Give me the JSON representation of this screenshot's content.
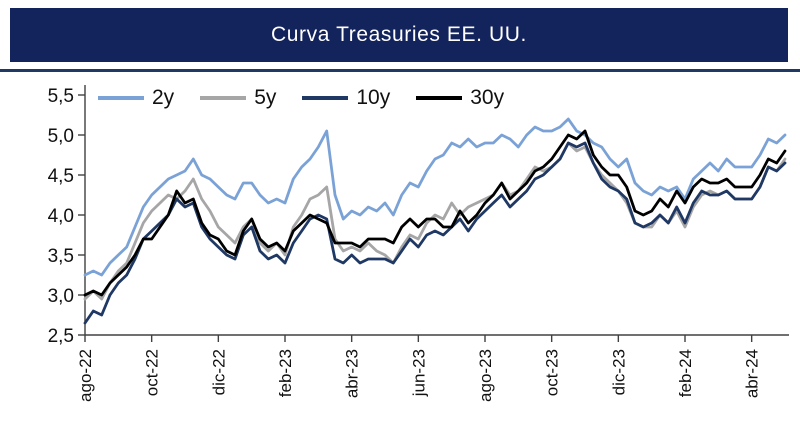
{
  "header": {
    "title": "Curva Treasuries EE. UU."
  },
  "colors": {
    "header_bg": "#13235B",
    "underline": "#1F3864",
    "axis": "#404040",
    "tick_text": "#111111"
  },
  "chart_data": {
    "type": "line",
    "title": "Curva Treasuries EE. UU.",
    "xlabel": "",
    "ylabel": "",
    "grid": false,
    "legend_position": "top-left-inside",
    "ylim": [
      2.5,
      5.5
    ],
    "xlim_months": [
      0,
      21
    ],
    "x_step_months": 0.25,
    "x_tick_months": [
      0,
      2,
      4,
      6,
      8,
      10,
      12,
      14,
      16,
      18,
      20
    ],
    "x_tick_labels": [
      "ago-22",
      "oct-22",
      "dic-22",
      "feb-23",
      "abr-23",
      "jun-23",
      "ago-23",
      "oct-23",
      "dic-23",
      "feb-24",
      "abr-24"
    ],
    "y_tick_values": [
      2.5,
      3.0,
      3.5,
      4.0,
      4.5,
      5.0,
      5.5
    ],
    "y_tick_labels": [
      "2,5",
      "3,0",
      "3,5",
      "4,0",
      "4,5",
      "5,0",
      "5,5"
    ],
    "series": [
      {
        "name": "2y",
        "color": "#7BA2D6",
        "values": [
          3.25,
          3.3,
          3.25,
          3.4,
          3.5,
          3.6,
          3.85,
          4.1,
          4.25,
          4.35,
          4.45,
          4.5,
          4.55,
          4.7,
          4.5,
          4.45,
          4.35,
          4.25,
          4.2,
          4.4,
          4.4,
          4.25,
          4.15,
          4.2,
          4.15,
          4.45,
          4.6,
          4.7,
          4.85,
          5.05,
          4.25,
          3.95,
          4.05,
          4.0,
          4.1,
          4.05,
          4.15,
          4.0,
          4.25,
          4.4,
          4.35,
          4.55,
          4.7,
          4.75,
          4.9,
          4.85,
          4.95,
          4.85,
          4.9,
          4.9,
          5.0,
          4.95,
          4.85,
          5.0,
          5.1,
          5.05,
          5.05,
          5.1,
          5.2,
          5.05,
          5.0,
          4.9,
          4.85,
          4.7,
          4.6,
          4.7,
          4.4,
          4.3,
          4.25,
          4.35,
          4.3,
          4.35,
          4.2,
          4.45,
          4.55,
          4.65,
          4.55,
          4.7,
          4.6,
          4.6,
          4.6,
          4.75,
          4.95,
          4.9,
          5.0
        ]
      },
      {
        "name": "5y",
        "color": "#A6A6A6",
        "values": [
          2.95,
          3.05,
          2.95,
          3.15,
          3.3,
          3.4,
          3.65,
          3.9,
          4.05,
          4.15,
          4.25,
          4.2,
          4.3,
          4.45,
          4.2,
          4.05,
          3.85,
          3.75,
          3.65,
          3.85,
          3.95,
          3.65,
          3.55,
          3.65,
          3.5,
          3.85,
          4.0,
          4.2,
          4.25,
          4.35,
          3.7,
          3.55,
          3.6,
          3.55,
          3.65,
          3.55,
          3.5,
          3.4,
          3.6,
          3.75,
          3.7,
          3.9,
          4.0,
          3.95,
          4.15,
          4.0,
          4.1,
          4.15,
          4.2,
          4.25,
          4.4,
          4.25,
          4.3,
          4.45,
          4.6,
          4.55,
          4.6,
          4.7,
          4.9,
          4.8,
          4.85,
          4.65,
          4.5,
          4.4,
          4.3,
          4.15,
          3.9,
          3.85,
          3.85,
          4.0,
          3.9,
          4.05,
          3.85,
          4.1,
          4.25,
          4.3,
          4.25,
          4.3,
          4.2,
          4.2,
          4.2,
          4.35,
          4.6,
          4.55,
          4.7
        ]
      },
      {
        "name": "10y",
        "color": "#1F3864",
        "values": [
          2.65,
          2.8,
          2.75,
          3.0,
          3.15,
          3.25,
          3.45,
          3.7,
          3.8,
          3.9,
          4.0,
          4.2,
          4.1,
          4.15,
          3.85,
          3.7,
          3.6,
          3.5,
          3.45,
          3.75,
          3.85,
          3.55,
          3.45,
          3.5,
          3.4,
          3.65,
          3.8,
          3.95,
          4.0,
          3.95,
          3.45,
          3.4,
          3.5,
          3.4,
          3.45,
          3.45,
          3.45,
          3.4,
          3.55,
          3.7,
          3.6,
          3.75,
          3.8,
          3.75,
          3.85,
          3.95,
          3.8,
          3.95,
          4.05,
          4.15,
          4.25,
          4.1,
          4.2,
          4.3,
          4.45,
          4.5,
          4.6,
          4.7,
          4.9,
          4.85,
          4.9,
          4.65,
          4.45,
          4.35,
          4.3,
          4.2,
          3.9,
          3.85,
          3.9,
          4.0,
          3.9,
          4.1,
          3.9,
          4.15,
          4.3,
          4.25,
          4.25,
          4.3,
          4.2,
          4.2,
          4.2,
          4.35,
          4.6,
          4.55,
          4.65
        ]
      },
      {
        "name": "30y",
        "color": "#000000",
        "values": [
          3.0,
          3.05,
          3.0,
          3.15,
          3.25,
          3.35,
          3.5,
          3.7,
          3.7,
          3.85,
          4.0,
          4.3,
          4.15,
          4.2,
          3.9,
          3.75,
          3.7,
          3.55,
          3.5,
          3.8,
          3.95,
          3.7,
          3.6,
          3.65,
          3.55,
          3.8,
          3.9,
          4.0,
          3.95,
          3.9,
          3.65,
          3.65,
          3.65,
          3.6,
          3.7,
          3.7,
          3.7,
          3.65,
          3.85,
          3.95,
          3.85,
          3.95,
          3.95,
          3.85,
          3.85,
          4.05,
          3.9,
          4.0,
          4.15,
          4.25,
          4.4,
          4.2,
          4.3,
          4.4,
          4.55,
          4.6,
          4.7,
          4.85,
          5.0,
          4.95,
          5.05,
          4.75,
          4.6,
          4.5,
          4.5,
          4.35,
          4.05,
          4.0,
          4.05,
          4.2,
          4.1,
          4.3,
          4.15,
          4.35,
          4.45,
          4.4,
          4.4,
          4.45,
          4.35,
          4.35,
          4.35,
          4.5,
          4.7,
          4.65,
          4.8
        ]
      }
    ]
  }
}
